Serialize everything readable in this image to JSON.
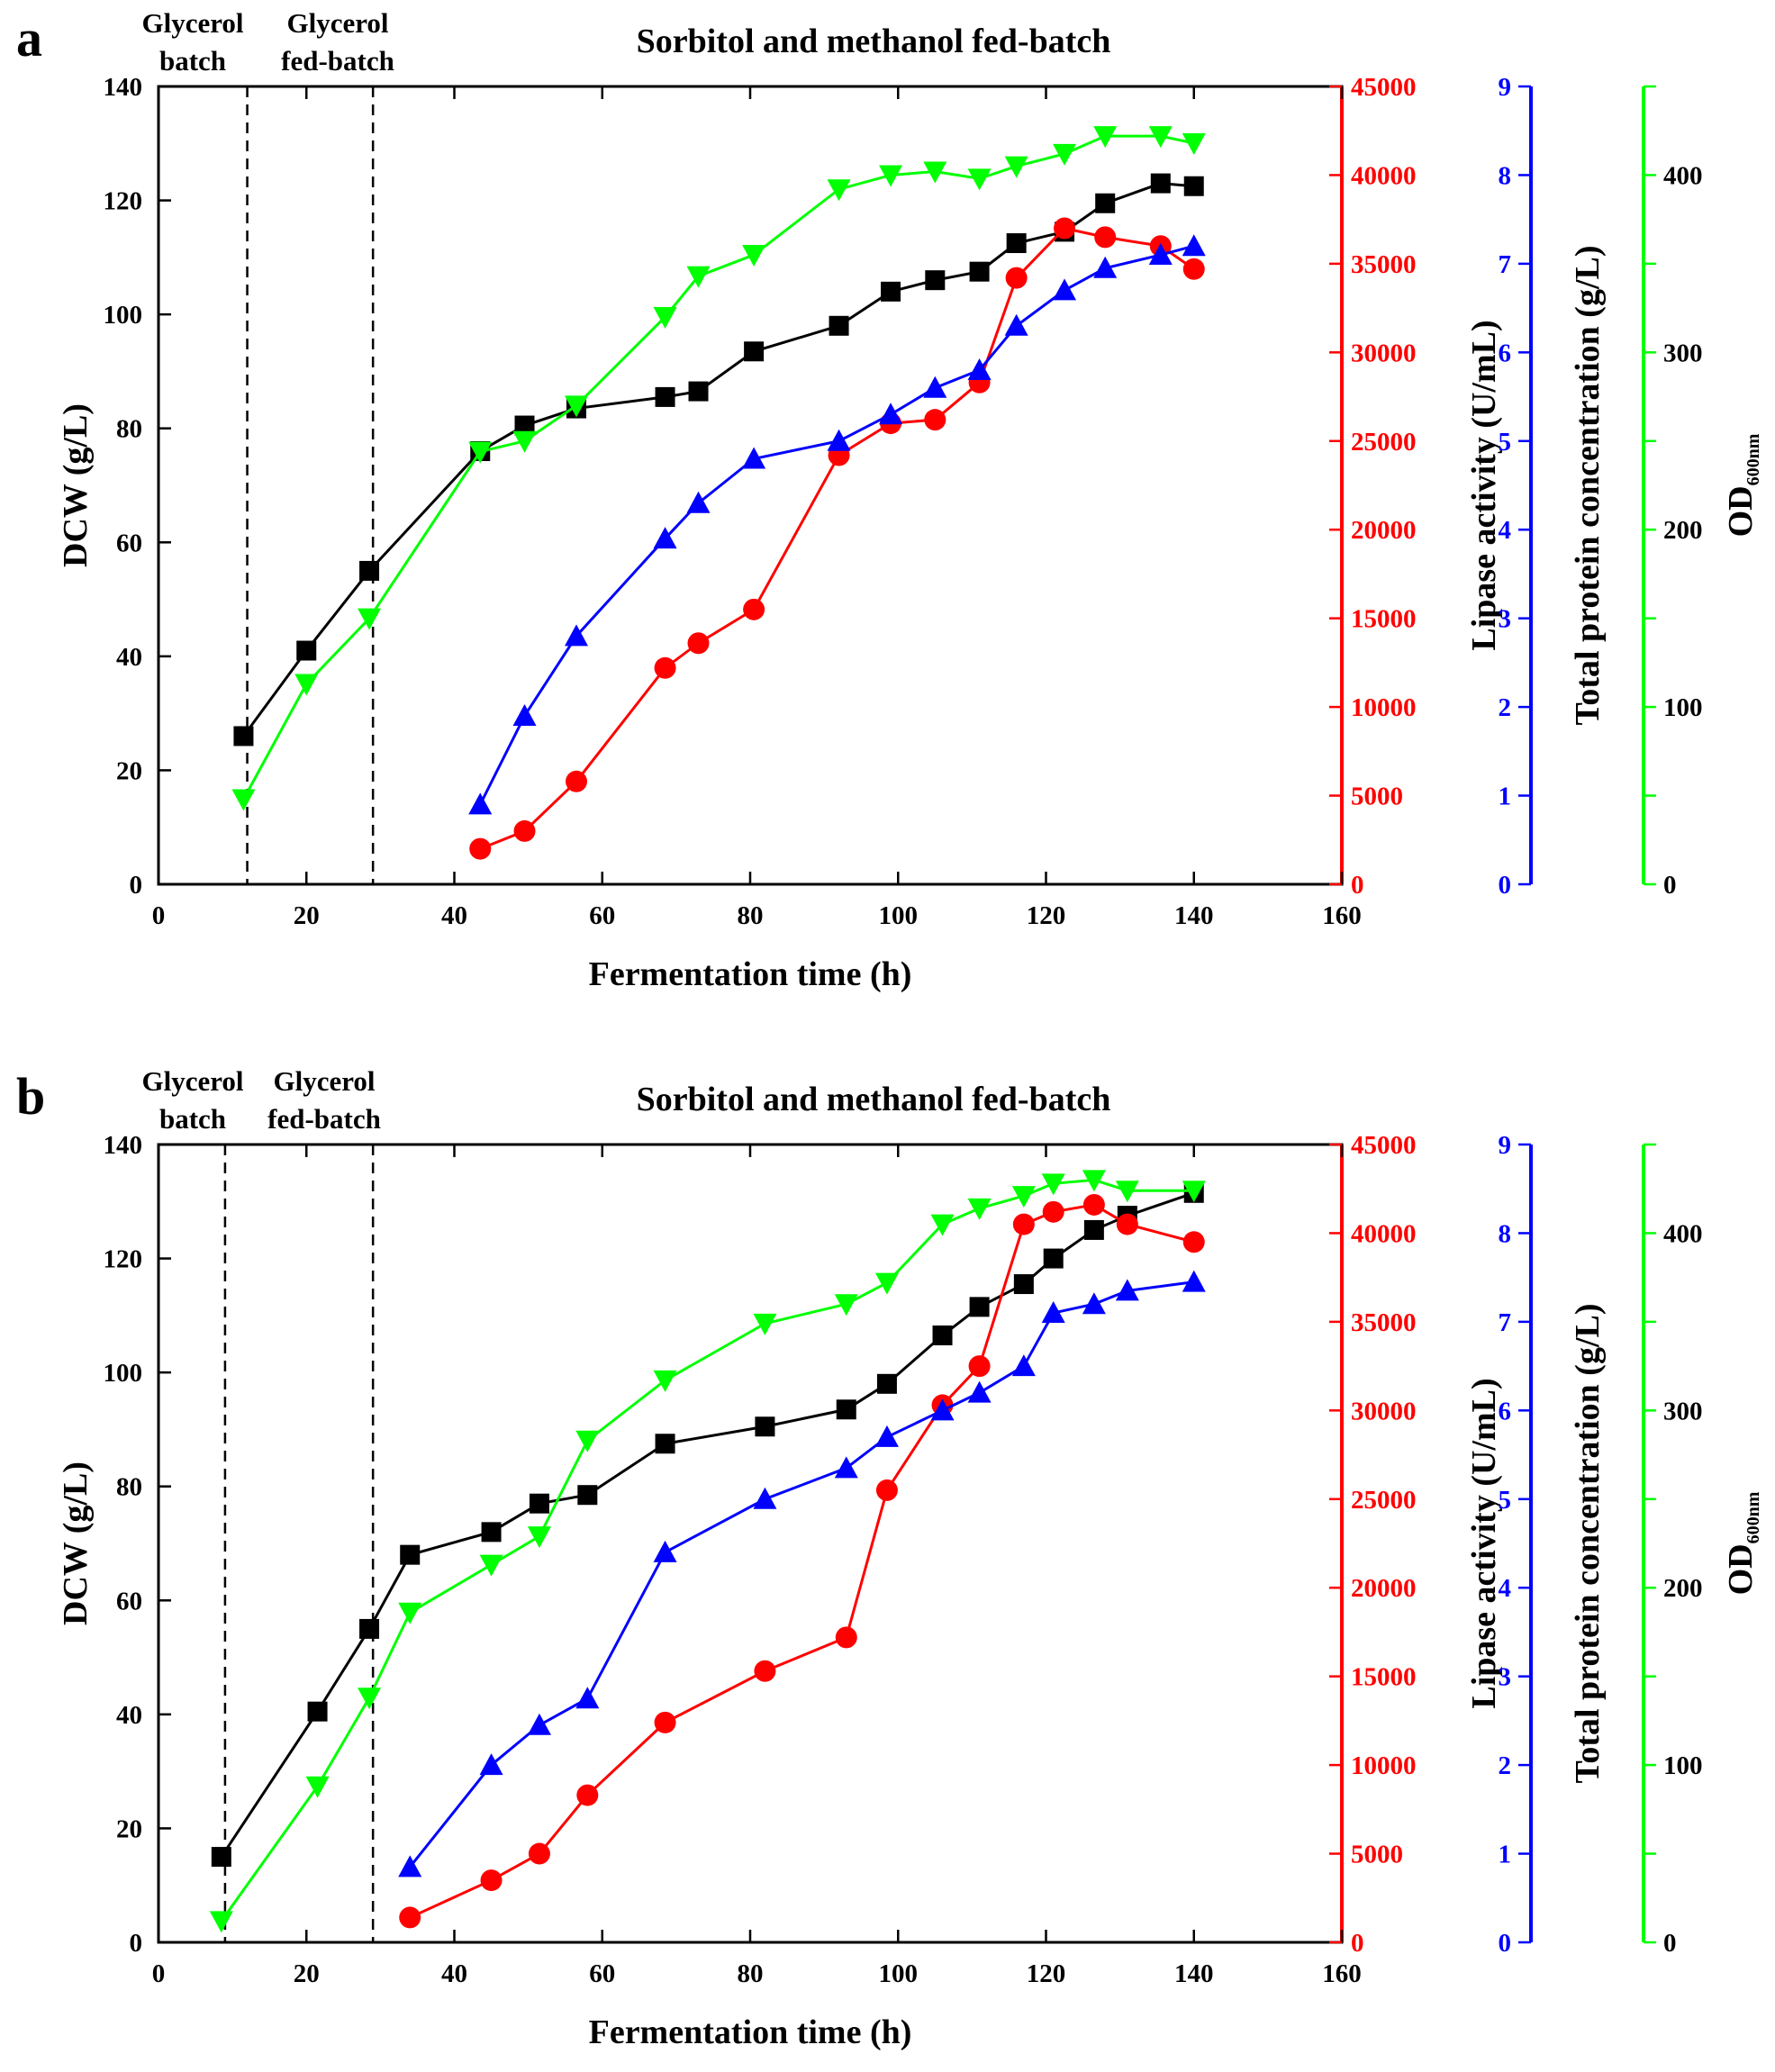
{
  "chart_data": [
    {
      "type": "line",
      "panel_label": "a",
      "title": "Sorbitol and methanol fed-batch",
      "phase_labels": [
        {
          "line1": "Glycerol",
          "line2": "batch"
        },
        {
          "line1": "Glycerol",
          "line2": "fed-batch"
        }
      ],
      "phase_boundaries": [
        12,
        29
      ],
      "xlabel": "Fermentation time (h)",
      "xlim": [
        0,
        160
      ],
      "xticks": [
        0,
        20,
        40,
        60,
        80,
        100,
        120,
        140,
        160
      ],
      "axes": {
        "dcw": {
          "label": "DCW (g/L)",
          "color": "#000000",
          "lim": [
            0,
            140
          ],
          "ticks": [
            0,
            20,
            40,
            60,
            80,
            100,
            120,
            140
          ]
        },
        "lipase": {
          "label": "Lipase activity (U/mL)",
          "color": "#ff0000",
          "lim": [
            0,
            45000
          ],
          "ticks": [
            0,
            5000,
            10000,
            15000,
            20000,
            25000,
            30000,
            35000,
            40000,
            45000
          ]
        },
        "protein": {
          "label": "Total protein concentration (g/L)",
          "color": "#0000ff",
          "lim": [
            0,
            9
          ],
          "ticks": [
            0,
            1,
            2,
            3,
            4,
            5,
            6,
            7,
            8,
            9
          ]
        },
        "od": {
          "label": "OD",
          "label_sub": "600nm",
          "color": "#00ff00",
          "lim": [
            0,
            450
          ],
          "ticks": [
            0,
            100,
            200,
            300,
            400
          ]
        }
      },
      "series": [
        {
          "name": "DCW",
          "axis": "dcw",
          "marker": "square",
          "color": "#000000",
          "x": [
            11.5,
            20,
            28.5,
            43.5,
            49.5,
            56.5,
            68.5,
            73,
            80.5,
            92,
            99,
            105,
            111,
            116,
            122.5,
            128,
            135.5,
            140
          ],
          "y": [
            26,
            41,
            55,
            76,
            80.5,
            83.5,
            85.5,
            86.5,
            93.5,
            98,
            104,
            106,
            107.5,
            112.5,
            114.5,
            119.5,
            123,
            122.5
          ]
        },
        {
          "name": "Lipase activity",
          "axis": "lipase",
          "marker": "circle",
          "color": "#ff0000",
          "x": [
            43.5,
            49.5,
            56.5,
            68.5,
            73,
            80.5,
            92,
            99,
            105,
            111,
            116,
            122.5,
            128,
            135.5,
            140
          ],
          "y": [
            2000,
            3000,
            5800,
            12200,
            13600,
            15500,
            24200,
            26000,
            26200,
            28300,
            34200,
            37000,
            36500,
            36000,
            34700
          ]
        },
        {
          "name": "Total protein concentration",
          "axis": "protein",
          "marker": "triangle-up",
          "color": "#0000ff",
          "x": [
            43.5,
            49.5,
            56.5,
            68.5,
            73,
            80.5,
            92,
            99,
            105,
            111,
            116,
            122.5,
            128,
            135.5,
            140
          ],
          "y": [
            0.9,
            1.9,
            2.8,
            3.9,
            4.3,
            4.8,
            5.0,
            5.3,
            5.6,
            5.8,
            6.3,
            6.7,
            6.95,
            7.1,
            7.2
          ]
        },
        {
          "name": "OD600nm",
          "axis": "od",
          "marker": "triangle-down",
          "color": "#00ff00",
          "x": [
            11.5,
            20,
            28.5,
            43.5,
            49.5,
            56.5,
            68.5,
            73,
            80.5,
            92,
            99,
            105,
            111,
            116,
            122.5,
            128,
            135.5,
            140
          ],
          "y": [
            48,
            113,
            150,
            244,
            250,
            270,
            320,
            343,
            355,
            392,
            400,
            402,
            398,
            405,
            412,
            422,
            422,
            418
          ]
        }
      ]
    },
    {
      "type": "line",
      "panel_label": "b",
      "title": "Sorbitol and methanol fed-batch",
      "phase_labels": [
        {
          "line1": "Glycerol",
          "line2": "batch"
        },
        {
          "line1": "Glycerol",
          "line2": "fed-batch"
        }
      ],
      "phase_boundaries": [
        9,
        29
      ],
      "xlabel": "Fermentation time (h)",
      "xlim": [
        0,
        160
      ],
      "xticks": [
        0,
        20,
        40,
        60,
        80,
        100,
        120,
        140,
        160
      ],
      "axes": {
        "dcw": {
          "label": "DCW (g/L)",
          "color": "#000000",
          "lim": [
            0,
            140
          ],
          "ticks": [
            0,
            20,
            40,
            60,
            80,
            100,
            120,
            140
          ]
        },
        "lipase": {
          "label": "Lipase activity (U/mL)",
          "color": "#ff0000",
          "lim": [
            0,
            45000
          ],
          "ticks": [
            0,
            5000,
            10000,
            15000,
            20000,
            25000,
            30000,
            35000,
            40000,
            45000
          ]
        },
        "protein": {
          "label": "Total protein concentration (g/L)",
          "color": "#0000ff",
          "lim": [
            0,
            9
          ],
          "ticks": [
            0,
            1,
            2,
            3,
            4,
            5,
            6,
            7,
            8,
            9
          ]
        },
        "od": {
          "label": "OD",
          "label_sub": "600nm",
          "color": "#00ff00",
          "lim": [
            0,
            450
          ],
          "ticks": [
            0,
            100,
            200,
            300,
            400
          ]
        }
      },
      "series": [
        {
          "name": "DCW",
          "axis": "dcw",
          "marker": "square",
          "color": "#000000",
          "x": [
            8.5,
            21.5,
            28.5,
            34,
            45,
            51.5,
            58,
            68.5,
            82,
            93,
            98.5,
            106,
            111,
            117,
            121,
            126.5,
            131,
            140
          ],
          "y": [
            15,
            40.5,
            55,
            68,
            72,
            77,
            78.5,
            87.5,
            90.5,
            93.5,
            98,
            106.5,
            111.5,
            115.5,
            120,
            125,
            127.5,
            131.5
          ]
        },
        {
          "name": "Lipase activity",
          "axis": "lipase",
          "marker": "circle",
          "color": "#ff0000",
          "x": [
            34,
            45,
            51.5,
            58,
            68.5,
            82,
            93,
            98.5,
            106,
            111,
            117,
            121,
            126.5,
            131,
            140
          ],
          "y": [
            1400,
            3500,
            5000,
            8300,
            12400,
            15300,
            17200,
            25500,
            30300,
            32500,
            40500,
            41200,
            41600,
            40500,
            39500
          ]
        },
        {
          "name": "Total protein concentration",
          "axis": "protein",
          "marker": "triangle-up",
          "color": "#0000ff",
          "x": [
            34,
            45,
            51.5,
            58,
            68.5,
            82,
            93,
            98.5,
            106,
            111,
            117,
            121,
            126.5,
            131,
            140
          ],
          "y": [
            0.85,
            2.0,
            2.45,
            2.75,
            4.4,
            5.0,
            5.35,
            5.7,
            6.0,
            6.2,
            6.5,
            7.1,
            7.2,
            7.35,
            7.45
          ]
        },
        {
          "name": "OD600nm",
          "axis": "od",
          "marker": "triangle-down",
          "color": "#00ff00",
          "x": [
            8.5,
            21.5,
            28.5,
            34,
            45,
            51.5,
            58,
            68.5,
            82,
            93,
            98.5,
            106,
            111,
            117,
            121,
            126.5,
            131,
            140
          ],
          "y": [
            12,
            88,
            138,
            186,
            213,
            229,
            283,
            317,
            349,
            360,
            372,
            405,
            414,
            421,
            428,
            430,
            424,
            424
          ]
        }
      ]
    }
  ]
}
